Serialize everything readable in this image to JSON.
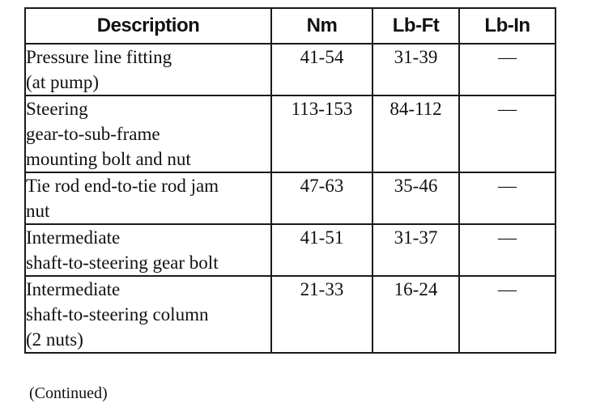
{
  "table": {
    "headers": {
      "description": "Description",
      "nm": "Nm",
      "lb_ft": "Lb-Ft",
      "lb_in": "Lb-In"
    },
    "rows": [
      {
        "description_lines": [
          "Pressure line fitting",
          "(at pump)"
        ],
        "nm": "41-54",
        "lb_ft": "31-39",
        "lb_in": "—"
      },
      {
        "description_lines": [
          "Steering",
          "gear-to-sub-frame",
          "mounting bolt and nut"
        ],
        "nm": "113-153",
        "lb_ft": "84-112",
        "lb_in": "—"
      },
      {
        "description_lines": [
          "Tie rod end-to-tie rod jam",
          "nut"
        ],
        "nm": "47-63",
        "lb_ft": "35-46",
        "lb_in": "—"
      },
      {
        "description_lines": [
          "Intermediate",
          "shaft-to-steering gear bolt"
        ],
        "nm": "41-51",
        "lb_ft": "31-37",
        "lb_in": "—"
      },
      {
        "description_lines": [
          "Intermediate",
          "shaft-to-steering column",
          "(2 nuts)"
        ],
        "nm": "21-33",
        "lb_ft": "16-24",
        "lb_in": "—"
      }
    ]
  },
  "footer": {
    "continued": "(Continued)"
  }
}
